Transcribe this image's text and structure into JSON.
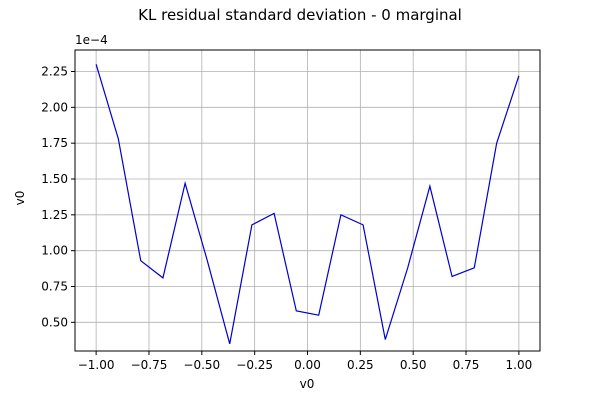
{
  "chart_data": {
    "type": "line",
    "title": "KL residual standard deviation - 0 marginal",
    "xlabel": "v0",
    "ylabel": "v0",
    "y_offset_label": "1e−4",
    "xlim": [
      -1.1,
      1.1
    ],
    "ylim": [
      0.3,
      2.4
    ],
    "x_ticks": [
      -1.0,
      -0.75,
      -0.5,
      -0.25,
      0.0,
      0.25,
      0.5,
      0.75,
      1.0
    ],
    "x_tick_labels": [
      "−1.00",
      "−0.75",
      "−0.50",
      "−0.25",
      "0.00",
      "0.25",
      "0.50",
      "0.75",
      "1.00"
    ],
    "y_ticks": [
      0.5,
      0.75,
      1.0,
      1.25,
      1.5,
      1.75,
      2.0,
      2.25
    ],
    "y_tick_labels": [
      "0.50",
      "0.75",
      "1.00",
      "1.25",
      "1.50",
      "1.75",
      "2.00",
      "2.25"
    ],
    "grid": true,
    "line_color": "#0000cc",
    "series": [
      {
        "x": [
          -1.0,
          -0.895,
          -0.789,
          -0.684,
          -0.579,
          -0.474,
          -0.368,
          -0.263,
          -0.158,
          -0.053,
          0.053,
          0.158,
          0.263,
          0.368,
          0.474,
          0.579,
          0.684,
          0.789,
          0.895,
          1.0
        ],
        "values": [
          2.3,
          1.78,
          0.93,
          0.81,
          1.47,
          0.93,
          0.35,
          1.18,
          1.26,
          0.58,
          0.55,
          1.25,
          1.18,
          0.38,
          0.88,
          1.45,
          0.82,
          0.88,
          1.75,
          2.22
        ]
      }
    ]
  }
}
